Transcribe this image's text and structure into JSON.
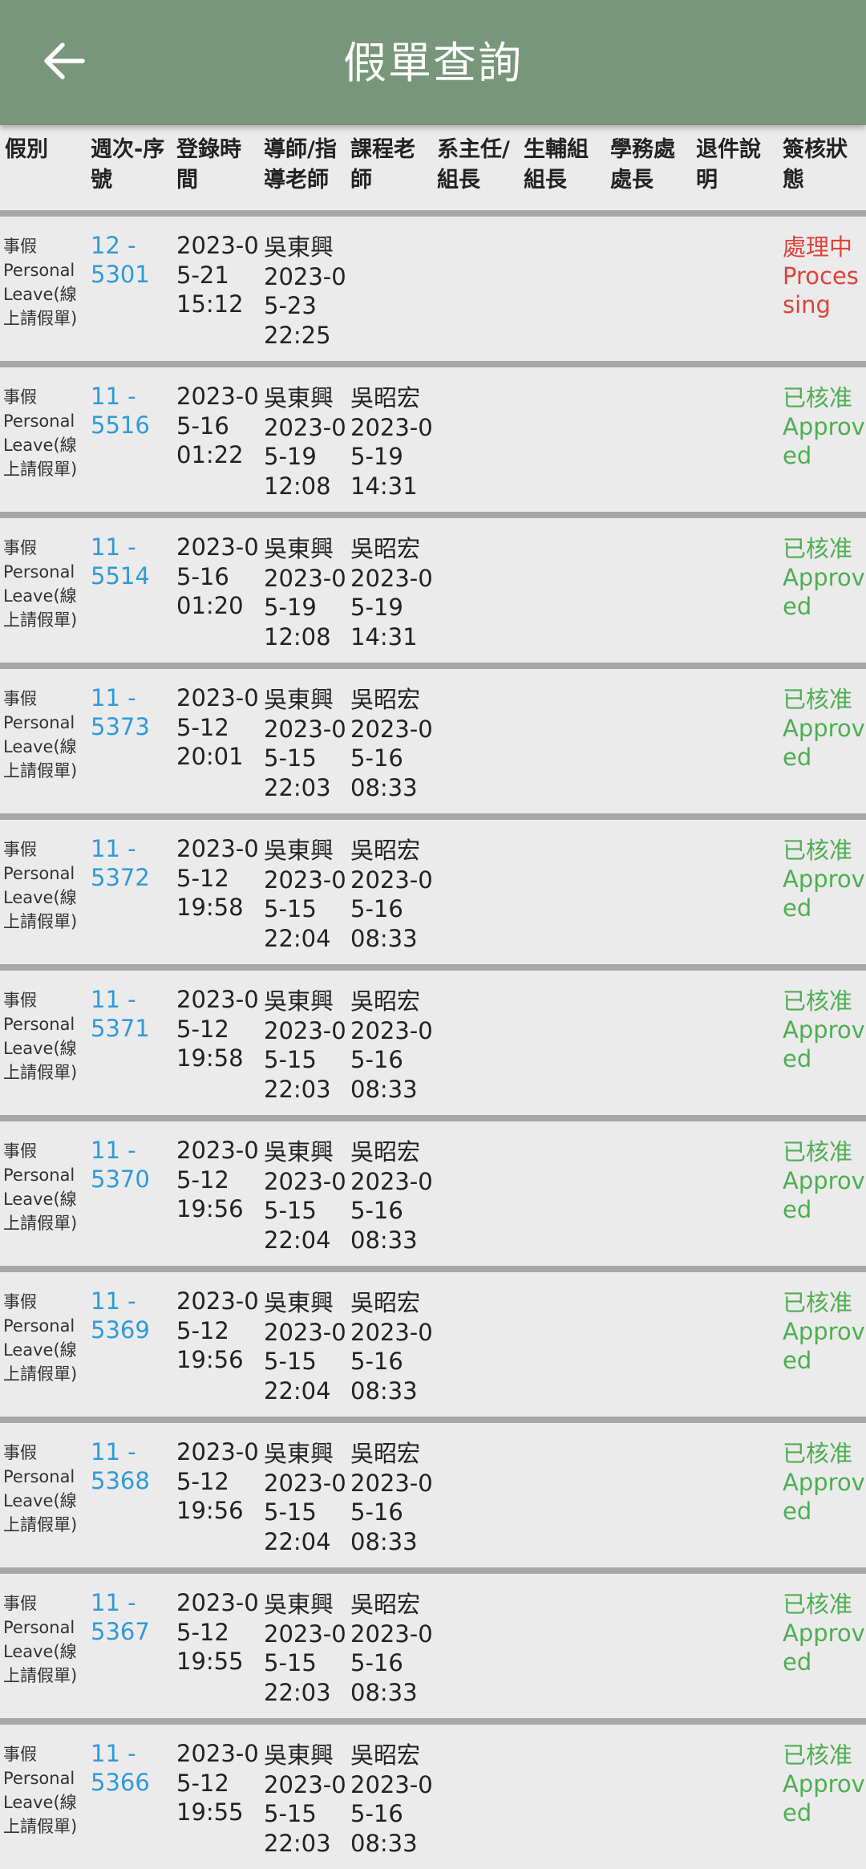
{
  "appbar": {
    "title": "假單查詢",
    "back_icon": "arrow-left-icon"
  },
  "colors": {
    "appbar_bg": "#77967a",
    "link": "#2f9ad9",
    "status_processing": "#e0423a",
    "status_approved": "#4caf50",
    "separator": "#a7a7a7",
    "page_bg": "#ebebeb"
  },
  "table": {
    "headers": [
      "假別",
      "週次-序\n號",
      "登錄時\n間",
      "導師/指\n導老師",
      "課程老\n師",
      "系主任/\n組長",
      "生輔組\n組長",
      "學務處\n處長",
      "退件說\n明",
      "簽核狀\n態"
    ],
    "rows": [
      {
        "type": "事假\nPersonal\nLeave(線\n上請假單)",
        "serial": "12 -\n5301",
        "login": "2023-0\n5-21\n15:12",
        "tutor": "吳東興\n2023-0\n5-23\n22:25",
        "course": "",
        "dept": "",
        "guidance": "",
        "affairs": "",
        "return": "",
        "status": "處理中\nProces\nsing",
        "status_kind": "processing"
      },
      {
        "type": "事假\nPersonal\nLeave(線\n上請假單)",
        "serial": "11 -\n5516",
        "login": "2023-0\n5-16\n01:22",
        "tutor": "吳東興\n2023-0\n5-19\n12:08",
        "course": "吳昭宏\n2023-0\n5-19\n14:31",
        "dept": "",
        "guidance": "",
        "affairs": "",
        "return": "",
        "status": "已核准\nApprov\ned",
        "status_kind": "approved"
      },
      {
        "type": "事假\nPersonal\nLeave(線\n上請假單)",
        "serial": "11 -\n5514",
        "login": "2023-0\n5-16\n01:20",
        "tutor": "吳東興\n2023-0\n5-19\n12:08",
        "course": "吳昭宏\n2023-0\n5-19\n14:31",
        "dept": "",
        "guidance": "",
        "affairs": "",
        "return": "",
        "status": "已核准\nApprov\ned",
        "status_kind": "approved"
      },
      {
        "type": "事假\nPersonal\nLeave(線\n上請假單)",
        "serial": "11 -\n5373",
        "login": "2023-0\n5-12\n20:01",
        "tutor": "吳東興\n2023-0\n5-15\n22:03",
        "course": "吳昭宏\n2023-0\n5-16\n08:33",
        "dept": "",
        "guidance": "",
        "affairs": "",
        "return": "",
        "status": "已核准\nApprov\ned",
        "status_kind": "approved"
      },
      {
        "type": "事假\nPersonal\nLeave(線\n上請假單)",
        "serial": "11 -\n5372",
        "login": "2023-0\n5-12\n19:58",
        "tutor": "吳東興\n2023-0\n5-15\n22:04",
        "course": "吳昭宏\n2023-0\n5-16\n08:33",
        "dept": "",
        "guidance": "",
        "affairs": "",
        "return": "",
        "status": "已核准\nApprov\ned",
        "status_kind": "approved"
      },
      {
        "type": "事假\nPersonal\nLeave(線\n上請假單)",
        "serial": "11 -\n5371",
        "login": "2023-0\n5-12\n19:58",
        "tutor": "吳東興\n2023-0\n5-15\n22:03",
        "course": "吳昭宏\n2023-0\n5-16\n08:33",
        "dept": "",
        "guidance": "",
        "affairs": "",
        "return": "",
        "status": "已核准\nApprov\ned",
        "status_kind": "approved"
      },
      {
        "type": "事假\nPersonal\nLeave(線\n上請假單)",
        "serial": "11 -\n5370",
        "login": "2023-0\n5-12\n19:56",
        "tutor": "吳東興\n2023-0\n5-15\n22:04",
        "course": "吳昭宏\n2023-0\n5-16\n08:33",
        "dept": "",
        "guidance": "",
        "affairs": "",
        "return": "",
        "status": "已核准\nApprov\ned",
        "status_kind": "approved"
      },
      {
        "type": "事假\nPersonal\nLeave(線\n上請假單)",
        "serial": "11 -\n5369",
        "login": "2023-0\n5-12\n19:56",
        "tutor": "吳東興\n2023-0\n5-15\n22:04",
        "course": "吳昭宏\n2023-0\n5-16\n08:33",
        "dept": "",
        "guidance": "",
        "affairs": "",
        "return": "",
        "status": "已核准\nApprov\ned",
        "status_kind": "approved"
      },
      {
        "type": "事假\nPersonal\nLeave(線\n上請假單)",
        "serial": "11 -\n5368",
        "login": "2023-0\n5-12\n19:56",
        "tutor": "吳東興\n2023-0\n5-15\n22:04",
        "course": "吳昭宏\n2023-0\n5-16\n08:33",
        "dept": "",
        "guidance": "",
        "affairs": "",
        "return": "",
        "status": "已核准\nApprov\ned",
        "status_kind": "approved"
      },
      {
        "type": "事假\nPersonal\nLeave(線\n上請假單)",
        "serial": "11 -\n5367",
        "login": "2023-0\n5-12\n19:55",
        "tutor": "吳東興\n2023-0\n5-15\n22:03",
        "course": "吳昭宏\n2023-0\n5-16\n08:33",
        "dept": "",
        "guidance": "",
        "affairs": "",
        "return": "",
        "status": "已核准\nApprov\ned",
        "status_kind": "approved"
      },
      {
        "type": "事假\nPersonal\nLeave(線\n上請假單)",
        "serial": "11 -\n5366",
        "login": "2023-0\n5-12\n19:55",
        "tutor": "吳東興\n2023-0\n5-15\n22:03",
        "course": "吳昭宏\n2023-0\n5-16\n08:33",
        "dept": "",
        "guidance": "",
        "affairs": "",
        "return": "",
        "status": "已核准\nApprov\ned",
        "status_kind": "approved"
      }
    ]
  }
}
